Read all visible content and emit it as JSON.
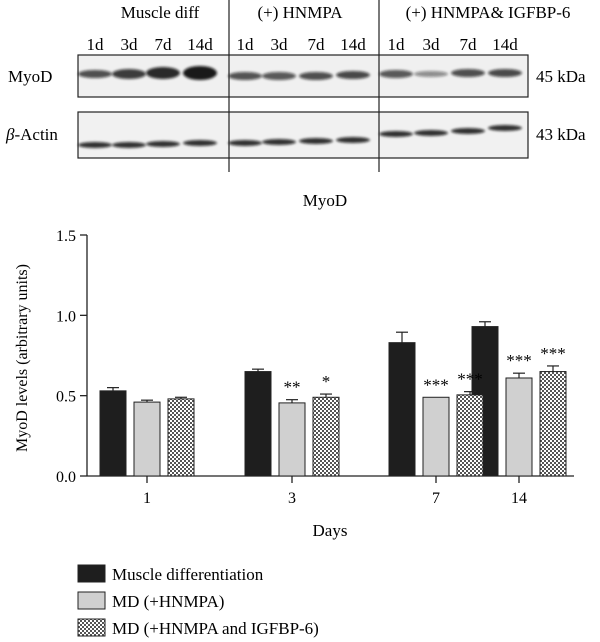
{
  "blot": {
    "groups": [
      "Muscle diff",
      "(+) HNMPA",
      "(+) HNMPA& IGFBP-6"
    ],
    "timepoints": [
      "1d",
      "3d",
      "7d",
      "14d"
    ],
    "rows": [
      {
        "label": "MyoD",
        "label_prefix": "",
        "label_rest": "MyoD",
        "size": "45 kDa"
      },
      {
        "label": "β-Actin",
        "label_prefix": "β",
        "label_rest": "-Actin",
        "size": "43 kDa"
      }
    ]
  },
  "chart_data": {
    "type": "bar",
    "title": "MyoD",
    "xlabel": "Days",
    "ylabel": "MyoD levels (arbitrary units)",
    "ylim": [
      0,
      1.5
    ],
    "yticks": [
      "0.0",
      "0.5",
      "1.0",
      "1.5"
    ],
    "categories": [
      "1",
      "3",
      "7",
      "14"
    ],
    "series": [
      {
        "name": "Muscle differentiation",
        "fill": "#1e1e1e",
        "values": [
          0.53,
          0.65,
          0.83,
          0.93
        ],
        "errors": [
          0.02,
          0.015,
          0.065,
          0.03
        ],
        "annotations": [
          "",
          "",
          "",
          ""
        ]
      },
      {
        "name": "MD (+HNMPA)",
        "fill": "#d0d0d0",
        "values": [
          0.46,
          0.455,
          0.49,
          0.61
        ],
        "errors": [
          0.012,
          0.02,
          0.0,
          0.03
        ],
        "annotations": [
          "",
          "**",
          "***",
          "***"
        ]
      },
      {
        "name": "MD (+HNMPA and IGFBP-6)",
        "fill": "checker",
        "values": [
          0.48,
          0.49,
          0.505,
          0.65
        ],
        "errors": [
          0.01,
          0.02,
          0.02,
          0.035
        ],
        "annotations": [
          "",
          "*",
          "***",
          "***"
        ]
      }
    ],
    "legend_position": "bottom-left"
  }
}
